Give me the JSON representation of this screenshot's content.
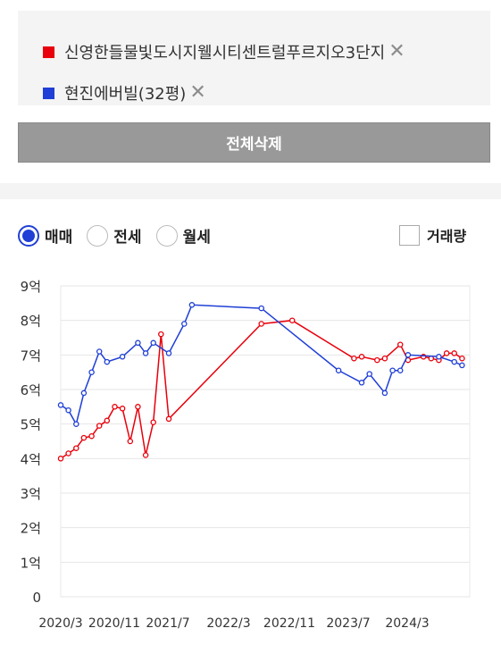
{
  "compare": {
    "items": [
      {
        "label": "신영한들물빛도시지웰시티센트럴푸르지오3단지",
        "color": "#e8000b"
      },
      {
        "label": "현진에버빌(32평)",
        "color": "#1f3fd6"
      }
    ],
    "remove_icon": "close-icon",
    "remove_glyph": "✕"
  },
  "delete_all_label": "전체삭제",
  "trade_types": {
    "options": [
      "매매",
      "전세",
      "월세"
    ],
    "selected": "매매"
  },
  "volume_toggle": {
    "label": "거래량",
    "checked": false
  },
  "chart_data": {
    "type": "line",
    "xlabel": "",
    "ylabel": "",
    "x_ticks": [
      "2020/3",
      "2020/11",
      "2021/7",
      "2022/3",
      "2022/11",
      "2023/7",
      "2024/3"
    ],
    "y_ticks": [
      "0",
      "1억",
      "2억",
      "3억",
      "4억",
      "5억",
      "6억",
      "7억",
      "8억",
      "9억"
    ],
    "ylim": [
      0,
      9
    ],
    "xlim": [
      "2020-01",
      "2024-06"
    ],
    "grid": true,
    "series": [
      {
        "name": "신영한들물빛도시지웰시티센트럴푸르지오3단지",
        "color": "#e8000b",
        "points": [
          [
            "2020-01",
            4.0
          ],
          [
            "2020-02",
            4.15
          ],
          [
            "2020-03",
            4.3
          ],
          [
            "2020-04",
            4.6
          ],
          [
            "2020-05",
            4.65
          ],
          [
            "2020-06",
            4.95
          ],
          [
            "2020-07",
            5.1
          ],
          [
            "2020-08",
            5.5
          ],
          [
            "2020-09",
            5.45
          ],
          [
            "2020-10",
            4.5
          ],
          [
            "2020-11",
            5.5
          ],
          [
            "2020-12",
            4.1
          ],
          [
            "2021-01",
            5.05
          ],
          [
            "2021-02",
            7.6
          ],
          [
            "2021-03",
            5.15
          ],
          [
            "2022-03",
            7.9
          ],
          [
            "2022-07",
            8.0
          ],
          [
            "2023-03",
            6.9
          ],
          [
            "2023-04",
            6.95
          ],
          [
            "2023-06",
            6.85
          ],
          [
            "2023-07",
            6.9
          ],
          [
            "2023-09",
            7.3
          ],
          [
            "2023-10",
            6.85
          ],
          [
            "2023-12",
            6.95
          ],
          [
            "2024-01",
            6.9
          ],
          [
            "2024-02",
            6.85
          ],
          [
            "2024-03",
            7.05
          ],
          [
            "2024-04",
            7.05
          ],
          [
            "2024-05",
            6.9
          ]
        ]
      },
      {
        "name": "현진에버빌(32평)",
        "color": "#1f3fd6",
        "points": [
          [
            "2020-01",
            5.55
          ],
          [
            "2020-02",
            5.4
          ],
          [
            "2020-03",
            5.0
          ],
          [
            "2020-04",
            5.9
          ],
          [
            "2020-05",
            6.5
          ],
          [
            "2020-06",
            7.1
          ],
          [
            "2020-07",
            6.8
          ],
          [
            "2020-09",
            6.95
          ],
          [
            "2020-11",
            7.35
          ],
          [
            "2020-12",
            7.05
          ],
          [
            "2021-01",
            7.35
          ],
          [
            "2021-03",
            7.05
          ],
          [
            "2021-05",
            7.9
          ],
          [
            "2021-06",
            8.45
          ],
          [
            "2022-03",
            8.35
          ],
          [
            "2023-01",
            6.55
          ],
          [
            "2023-04",
            6.2
          ],
          [
            "2023-05",
            6.45
          ],
          [
            "2023-07",
            5.9
          ],
          [
            "2023-08",
            6.55
          ],
          [
            "2023-09",
            6.55
          ],
          [
            "2023-10",
            7.0
          ],
          [
            "2024-02",
            6.95
          ],
          [
            "2024-04",
            6.8
          ],
          [
            "2024-05",
            6.7
          ]
        ]
      }
    ]
  }
}
